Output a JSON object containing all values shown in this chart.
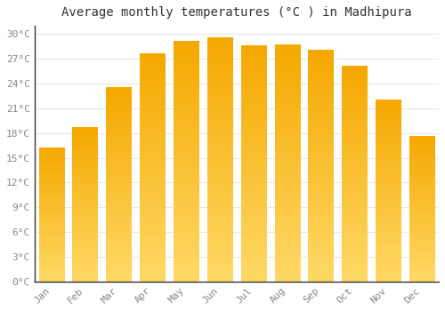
{
  "title": "Average monthly temperatures (°C ) in Madhipura",
  "months": [
    "Jan",
    "Feb",
    "Mar",
    "Apr",
    "May",
    "Jun",
    "Jul",
    "Aug",
    "Sep",
    "Oct",
    "Nov",
    "Dec"
  ],
  "values": [
    16.2,
    18.7,
    23.5,
    27.6,
    29.1,
    29.6,
    28.6,
    28.7,
    28.1,
    26.1,
    22.0,
    17.6
  ],
  "bar_color_top": "#F5A800",
  "bar_color_bottom": "#FFD966",
  "ylim": [
    0,
    31
  ],
  "yticks": [
    0,
    3,
    6,
    9,
    12,
    15,
    18,
    21,
    24,
    27,
    30
  ],
  "ytick_labels": [
    "0°C",
    "3°C",
    "6°C",
    "9°C",
    "12°C",
    "15°C",
    "18°C",
    "21°C",
    "24°C",
    "27°C",
    "30°C"
  ],
  "background_color": "#ffffff",
  "grid_color": "#e8e8e8",
  "title_fontsize": 10,
  "tick_fontsize": 8,
  "bar_width": 0.75,
  "left_spine_color": "#333333"
}
